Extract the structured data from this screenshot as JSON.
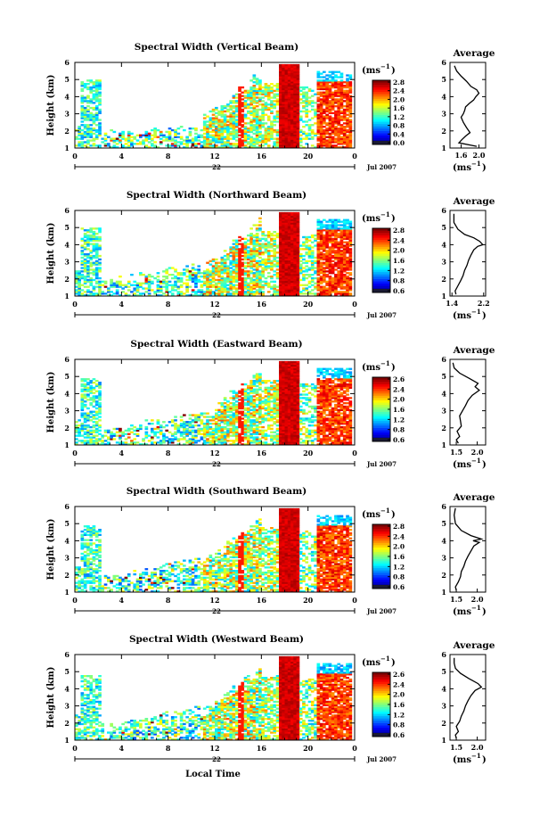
{
  "figure": {
    "x_axis_label": "Local Time",
    "time_ticks": [
      "0",
      "4",
      "8",
      "12",
      "16",
      "20",
      "0"
    ],
    "date_marker": "22",
    "date_label": "Jul 2007",
    "height_ticks": [
      "1",
      "2",
      "3",
      "4",
      "5",
      "6"
    ],
    "y_axis_label": "Height (km)",
    "colorbar_unit": "(ms",
    "colorbar_unit_exp": "−1",
    "colorbar_unit_close": ")",
    "average_title": "Average",
    "average_unit": "(ms",
    "average_unit_exp": "−1",
    "average_unit_close": ")"
  },
  "chart_data": [
    {
      "type": "heatmap",
      "title": "Spectral Width (Vertical Beam)",
      "xlabel": "",
      "ylabel": "Height (km)",
      "xlim": [
        0,
        24
      ],
      "ylim": [
        1,
        6
      ],
      "colorbar": {
        "ticks": [
          "0.0",
          "0.4",
          "0.8",
          "1.2",
          "1.6",
          "2.0",
          "2.4",
          "2.8"
        ]
      },
      "average_profile": {
        "xticks": [
          "1.6",
          "2.0"
        ],
        "xlim": [
          1.35,
          2.15
        ],
        "x": [
          1.95,
          1.55,
          1.62,
          1.7,
          1.8,
          1.72,
          1.65,
          1.6,
          1.65,
          1.68,
          1.7,
          1.78,
          1.88,
          1.93,
          2.0,
          1.95,
          1.82,
          1.72,
          1.6,
          1.5,
          1.45
        ],
        "y": [
          1.1,
          1.3,
          1.5,
          1.7,
          1.9,
          2.2,
          2.5,
          2.8,
          3.0,
          3.2,
          3.4,
          3.6,
          3.8,
          4.0,
          4.2,
          4.4,
          4.6,
          4.9,
          5.2,
          5.5,
          5.8
        ]
      }
    },
    {
      "type": "heatmap",
      "title": "Spectral Width (Northward Beam)",
      "xlabel": "",
      "ylabel": "Height (km)",
      "xlim": [
        0,
        24
      ],
      "ylim": [
        1,
        6
      ],
      "colorbar": {
        "ticks": [
          "0.6",
          "0.8",
          "1.2",
          "1.6",
          "2.0",
          "2.4",
          "2.8"
        ]
      },
      "average_profile": {
        "xticks": [
          "1.4",
          "2.2"
        ],
        "xlim": [
          1.35,
          2.25
        ],
        "x": [
          1.5,
          1.48,
          1.55,
          1.62,
          1.68,
          1.72,
          1.78,
          1.82,
          1.88,
          1.95,
          2.05,
          2.18,
          2.1,
          1.95,
          1.72,
          1.55,
          1.45,
          1.45
        ],
        "y": [
          1.1,
          1.3,
          1.6,
          1.9,
          2.2,
          2.5,
          2.8,
          3.1,
          3.4,
          3.7,
          3.9,
          4.0,
          4.2,
          4.4,
          4.6,
          4.9,
          5.3,
          5.8
        ]
      }
    },
    {
      "type": "heatmap",
      "title": "Spectral Width (Eastward Beam)",
      "xlabel": "",
      "ylabel": "Height (km)",
      "xlim": [
        0,
        24
      ],
      "ylim": [
        1,
        6
      ],
      "colorbar": {
        "ticks": [
          "0.6",
          "0.8",
          "1.2",
          "1.6",
          "2.0",
          "2.4",
          "2.6"
        ]
      },
      "average_profile": {
        "xticks": [
          "1.5",
          "2.0"
        ],
        "xlim": [
          1.35,
          2.2
        ],
        "x": [
          1.55,
          1.5,
          1.58,
          1.52,
          1.62,
          1.6,
          1.58,
          1.65,
          1.72,
          1.78,
          1.88,
          2.05,
          1.95,
          2.02,
          1.8,
          1.58,
          1.45,
          1.42
        ],
        "y": [
          1.1,
          1.3,
          1.5,
          1.8,
          2.1,
          2.4,
          2.7,
          3.0,
          3.3,
          3.6,
          3.9,
          4.2,
          4.4,
          4.6,
          4.9,
          5.2,
          5.5,
          5.8
        ]
      }
    },
    {
      "type": "heatmap",
      "title": "Spectral Width (Southward Beam)",
      "xlabel": "",
      "ylabel": "Height (km)",
      "xlim": [
        0,
        24
      ],
      "ylim": [
        1,
        6
      ],
      "colorbar": {
        "ticks": [
          "0.6",
          "0.8",
          "1.2",
          "1.6",
          "2.0",
          "2.4",
          "2.8"
        ]
      },
      "average_profile": {
        "xticks": [
          "1.5",
          "2.0"
        ],
        "xlim": [
          1.35,
          2.2
        ],
        "x": [
          1.5,
          1.48,
          1.55,
          1.6,
          1.62,
          1.68,
          1.72,
          1.78,
          1.85,
          1.92,
          2.05,
          1.9,
          2.1,
          1.85,
          1.62,
          1.48,
          1.45,
          1.48
        ],
        "y": [
          1.1,
          1.3,
          1.6,
          1.9,
          2.2,
          2.5,
          2.8,
          3.1,
          3.4,
          3.7,
          3.9,
          4.0,
          4.1,
          4.3,
          4.6,
          5.0,
          5.5,
          5.9
        ]
      }
    },
    {
      "type": "heatmap",
      "title": "Spectral Width (Westward Beam)",
      "xlabel": "Local Time",
      "ylabel": "Height (km)",
      "xlim": [
        0,
        24
      ],
      "ylim": [
        1,
        6
      ],
      "colorbar": {
        "ticks": [
          "0.6",
          "0.8",
          "1.2",
          "1.6",
          "2.0",
          "2.4",
          "2.6"
        ]
      },
      "average_profile": {
        "xticks": [
          "1.5",
          "2.0"
        ],
        "xlim": [
          1.35,
          2.2
        ],
        "x": [
          1.5,
          1.48,
          1.55,
          1.5,
          1.58,
          1.62,
          1.68,
          1.72,
          1.78,
          1.85,
          1.95,
          2.1,
          2.02,
          1.8,
          1.6,
          1.48,
          1.45,
          1.45
        ],
        "y": [
          1.1,
          1.3,
          1.5,
          1.8,
          2.1,
          2.4,
          2.7,
          3.0,
          3.3,
          3.6,
          3.9,
          4.1,
          4.3,
          4.6,
          4.9,
          5.2,
          5.5,
          5.8
        ]
      }
    }
  ]
}
